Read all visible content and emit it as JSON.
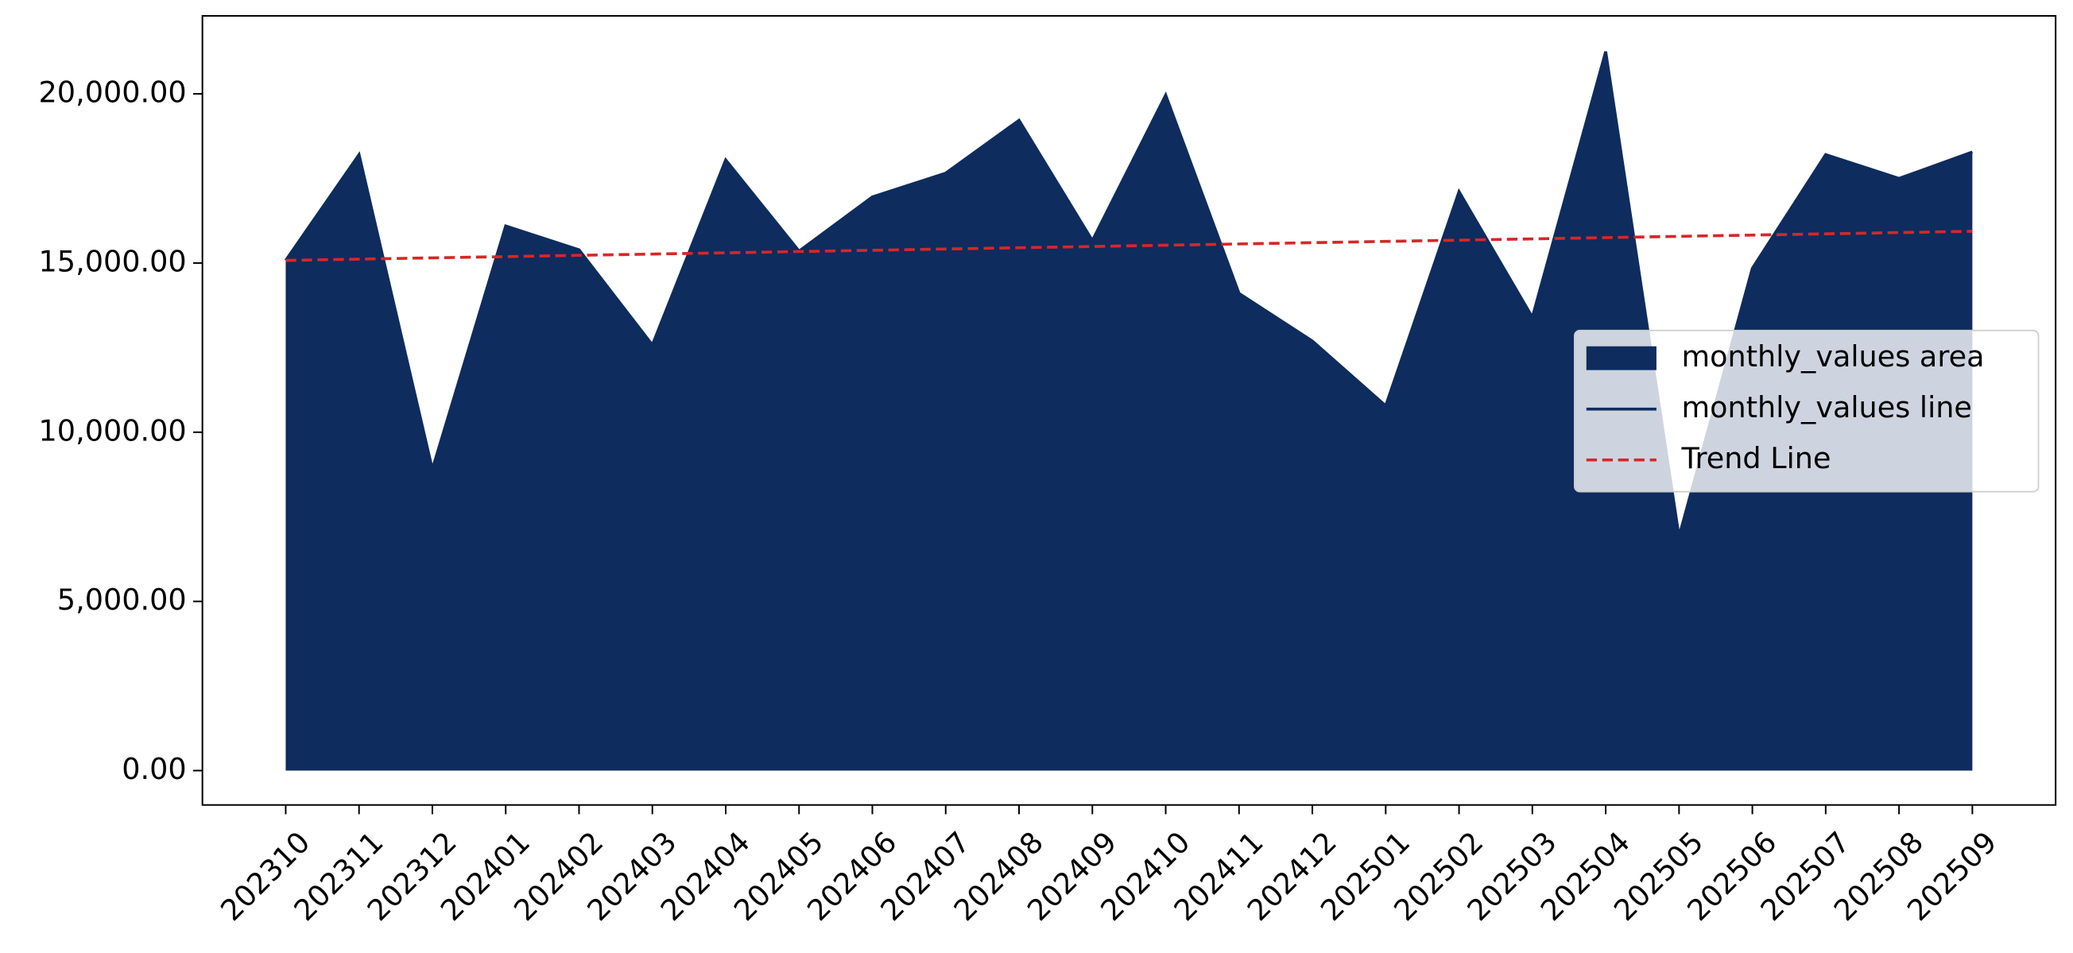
{
  "chart_data": {
    "type": "area",
    "categories": [
      "202310",
      "202311",
      "202312",
      "202401",
      "202402",
      "202403",
      "202404",
      "202405",
      "202406",
      "202407",
      "202408",
      "202409",
      "202410",
      "202411",
      "202412",
      "202501",
      "202502",
      "202503",
      "202504",
      "202505",
      "202506",
      "202507",
      "202508",
      "202509"
    ],
    "series": [
      {
        "name": "monthly_values area",
        "color": "#0e2c5e",
        "values": [
          15078,
          18203,
          8906,
          16094,
          15391,
          12578,
          18047,
          15352,
          16953,
          17656,
          19219,
          15664,
          19961,
          14102,
          12695,
          10781,
          17109,
          13398,
          21250,
          6914,
          14844,
          18203,
          17500,
          18281
        ]
      },
      {
        "name": "monthly_values line",
        "color": "#0e2c5e",
        "values": [
          15078,
          18203,
          8906,
          16094,
          15391,
          12578,
          18047,
          15352,
          16953,
          17656,
          19219,
          15664,
          19961,
          14102,
          12695,
          10781,
          17109,
          13398,
          21250,
          6914,
          14844,
          18203,
          17500,
          18281
        ]
      },
      {
        "name": "Trend Line",
        "color": "#d62728",
        "dashed": true,
        "values": [
          15078,
          15115,
          15153,
          15190,
          15228,
          15265,
          15302,
          15340,
          15377,
          15415,
          15452,
          15489,
          15527,
          15564,
          15602,
          15639,
          15676,
          15714,
          15751,
          15789,
          15826,
          15863,
          15901,
          15938
        ]
      }
    ],
    "ylim": [
      -1016,
      22305
    ],
    "yticks": [
      {
        "value": 0,
        "label": "0.00"
      },
      {
        "value": 5000,
        "label": "5,000.00"
      },
      {
        "value": 10000,
        "label": "10,000.00"
      },
      {
        "value": 15000,
        "label": "15,000.00"
      },
      {
        "value": 20000,
        "label": "20,000.00"
      }
    ],
    "legend": "center right"
  }
}
